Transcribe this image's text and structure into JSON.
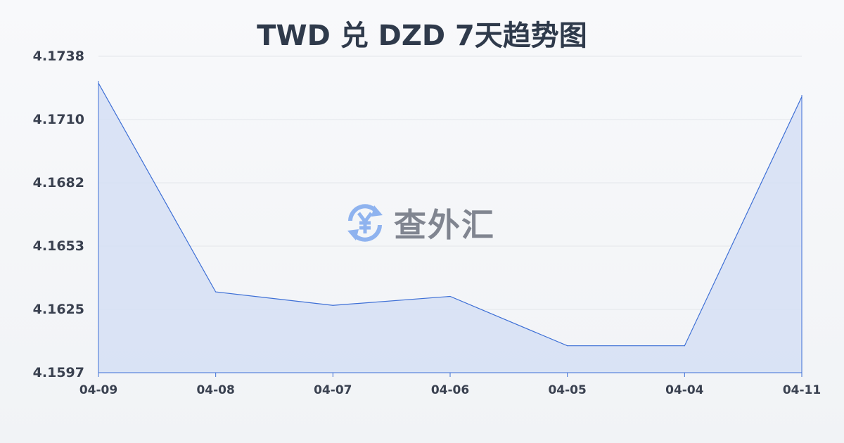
{
  "chart_data": {
    "type": "area",
    "title": "TWD 兑 DZD 7天趋势图",
    "categories": [
      "04-09",
      "04-08",
      "04-07",
      "04-06",
      "04-05",
      "04-04",
      "04-11"
    ],
    "values": [
      4.1726,
      4.1633,
      4.1627,
      4.1631,
      4.1609,
      4.1609,
      4.172
    ],
    "yticks": [
      "4.1738",
      "4.1710",
      "4.1682",
      "4.1653",
      "4.1625",
      "4.1597"
    ],
    "ylim": [
      4.1597,
      4.1738
    ],
    "grid": true,
    "line_color": "#3d6fd6",
    "fill_color": "#d5dff5"
  },
  "watermark": {
    "text": "查外汇",
    "icon": "yen-exchange-icon",
    "icon_color": "#8fb3ef"
  }
}
